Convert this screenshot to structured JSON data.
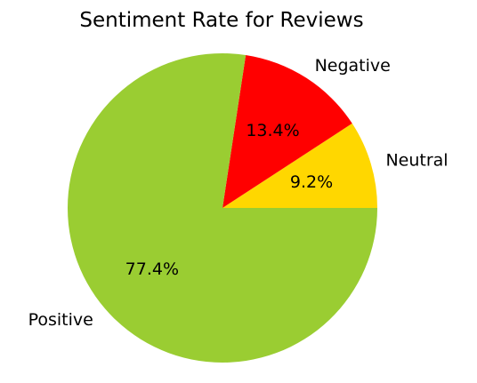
{
  "chart_data": {
    "type": "pie",
    "title": "Sentiment Rate for Reviews",
    "slices": [
      {
        "label": "Neutral",
        "value": 9.2,
        "pct_label": "9.2%",
        "color": "#ffd700"
      },
      {
        "label": "Negative",
        "value": 13.4,
        "pct_label": "13.4%",
        "color": "#ff0000"
      },
      {
        "label": "Positive",
        "value": 77.4,
        "pct_label": "77.4%",
        "color": "#9acd32"
      }
    ],
    "start_angle_deg": 0,
    "direction": "counterclockwise-from-right"
  }
}
